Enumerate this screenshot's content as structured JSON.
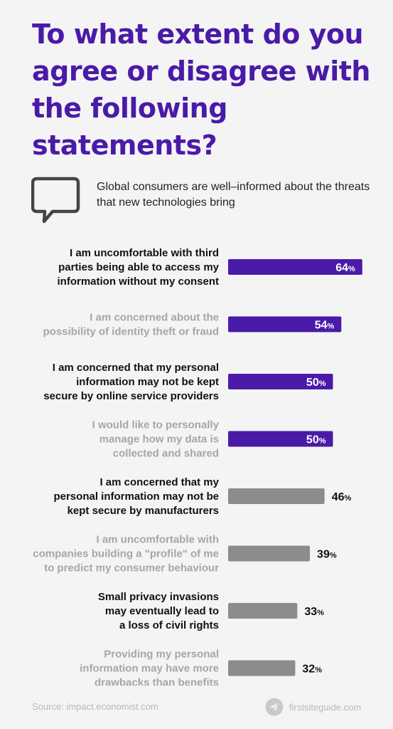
{
  "header": {
    "title": "To what extent do you agree or disagree with the following statements?",
    "subtitle": "Global consumers are well–informed about the threats that new technologies bring"
  },
  "colors": {
    "title": "#4a1aa8",
    "bar_highlight": "#4a1aa8",
    "bar_muted": "#8c8c8c",
    "label_dark": "#111111",
    "label_light": "#a6a6a6"
  },
  "icons": {
    "subtitle_icon": "speech-bubble-icon",
    "brand_icon": "paper-plane-icon"
  },
  "chart_data": {
    "type": "bar",
    "orientation": "horizontal",
    "value_suffix": "%",
    "categories": [
      "I am uncomfortable with third parties being able to access my information without my consent",
      "I am concerned about the possibility of identity theft or fraud",
      "I am concerned that my personal information may not be kept secure by online service providers",
      "I would like to personally manage how my data is collected and shared",
      "I am concerned that my personal information may not be kept secure by manufacturers",
      "I am uncomfortable with companies building a \"profile\" of me to predict my consumer behaviour",
      "Small privacy invasions may eventually lead to a loss of civil rights",
      "Providing my personal information may have more drawbacks than benefits"
    ],
    "label_lines": [
      [
        "I am uncomfortable with third",
        "parties being able to access my",
        "information without my consent"
      ],
      [
        "I am concerned about the",
        "possibility of identity theft or fraud"
      ],
      [
        "I am concerned that my personal",
        "information may not be kept",
        "secure by online service providers"
      ],
      [
        "I would like to personally",
        "manage how my data is",
        "collected and shared"
      ],
      [
        "I am concerned that my",
        "personal information may not be",
        "kept secure by manufacturers"
      ],
      [
        "I am uncomfortable with",
        "companies building a \"profile\" of me",
        "to predict my consumer behaviour"
      ],
      [
        "Small privacy invasions",
        "may eventually lead to",
        "a loss of civil rights"
      ],
      [
        "Providing my personal",
        "information may have more",
        "drawbacks than benefits"
      ]
    ],
    "values": [
      64,
      54,
      50,
      50,
      46,
      39,
      33,
      32
    ],
    "highlight": [
      true,
      true,
      true,
      true,
      false,
      false,
      false,
      false
    ],
    "label_emphasis": [
      true,
      false,
      true,
      false,
      true,
      false,
      true,
      false
    ],
    "xlim": [
      0,
      100
    ]
  },
  "footer": {
    "source": "Source:  impact.economist.com",
    "brand": "firstsiteguide.com"
  }
}
